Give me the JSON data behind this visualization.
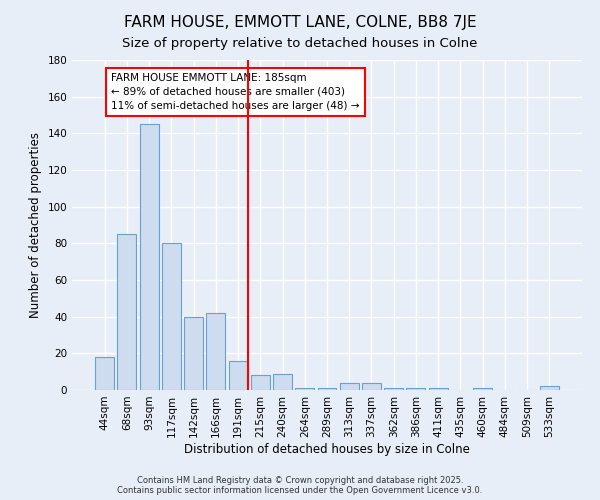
{
  "title": "FARM HOUSE, EMMOTT LANE, COLNE, BB8 7JE",
  "subtitle": "Size of property relative to detached houses in Colne",
  "xlabel": "Distribution of detached houses by size in Colne",
  "ylabel": "Number of detached properties",
  "bin_labels": [
    "44sqm",
    "68sqm",
    "93sqm",
    "117sqm",
    "142sqm",
    "166sqm",
    "191sqm",
    "215sqm",
    "240sqm",
    "264sqm",
    "289sqm",
    "313sqm",
    "337sqm",
    "362sqm",
    "386sqm",
    "411sqm",
    "435sqm",
    "460sqm",
    "484sqm",
    "509sqm",
    "533sqm"
  ],
  "bin_values": [
    18,
    85,
    145,
    80,
    40,
    42,
    16,
    8,
    9,
    1,
    1,
    4,
    4,
    1,
    1,
    1,
    0,
    1,
    0,
    0,
    2
  ],
  "bar_color": "#cddcee",
  "bar_edge_color": "#6aA0cc",
  "red_line_index": 6,
  "annotation_line1": "FARM HOUSE EMMOTT LANE: 185sqm",
  "annotation_line2": "← 89% of detached houses are smaller (403)",
  "annotation_line3": "11% of semi-detached houses are larger (48) →",
  "annotation_box_color": "white",
  "annotation_box_edge_color": "red",
  "ylim": [
    0,
    180
  ],
  "yticks": [
    0,
    20,
    40,
    60,
    80,
    100,
    120,
    140,
    160,
    180
  ],
  "background_color": "#e8eef8",
  "grid_color": "white",
  "title_fontsize": 11,
  "subtitle_fontsize": 9.5,
  "axis_label_fontsize": 8.5,
  "tick_fontsize": 7.5,
  "annotation_fontsize": 7.5,
  "footer_text": "Contains HM Land Registry data © Crown copyright and database right 2025.\nContains public sector information licensed under the Open Government Licence v3.0."
}
